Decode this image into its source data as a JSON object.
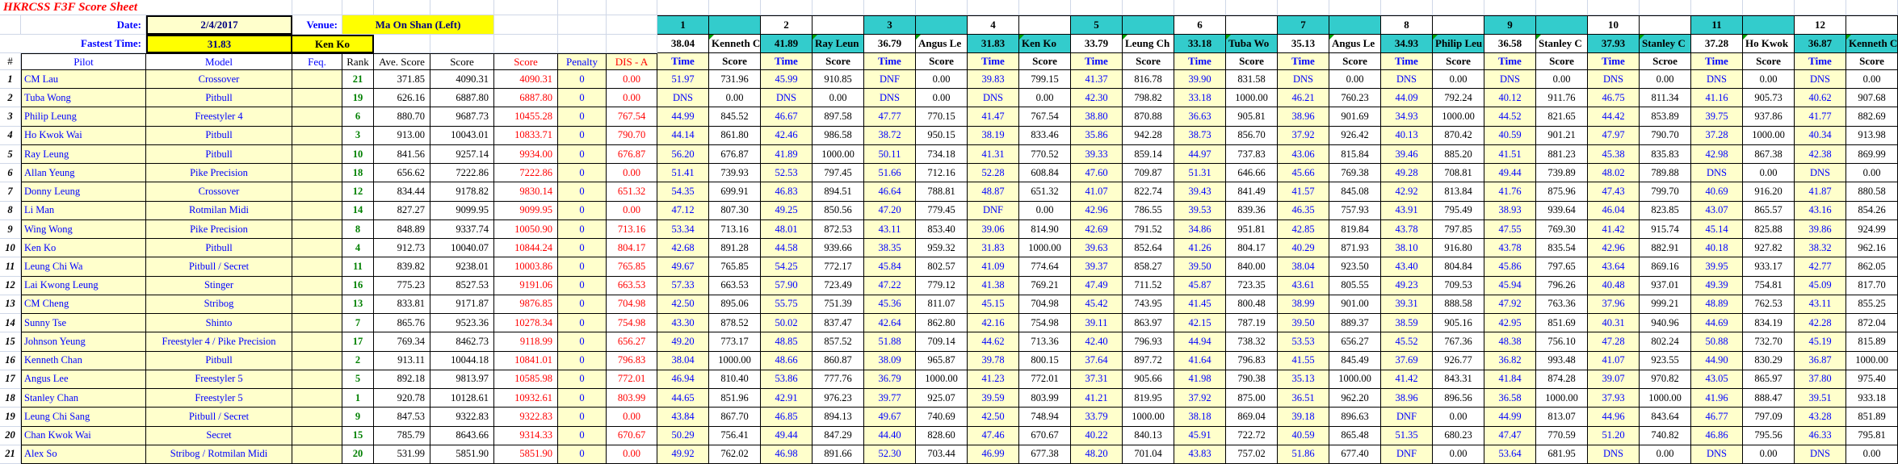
{
  "header": {
    "title": "HKRCSS F3F Score Sheet",
    "date_label": "Date:",
    "date": "2/4/2017",
    "venue_label": "Venue:",
    "venue": "Ma On Shan (Left)",
    "fastest_label": "Fastest Time:",
    "fastest_time": "31.83",
    "fastest_pilot": "Ken Ko"
  },
  "columns": {
    "num": "#",
    "pilot": "Pilot",
    "model": "Model",
    "feq": "Feq.",
    "rank": "Rank",
    "ave": "Ave. Score",
    "score": "Score",
    "score2": "Score",
    "penalty": "Penalty",
    "dis": "DIS - A",
    "time": "Time"
  },
  "colors": {
    "teal": "#33cccc",
    "pale_yellow": "#ffffcc",
    "bright_yellow": "#ffff00",
    "blue": "#0000ff",
    "red": "#ff0000",
    "green": "#008000",
    "navy": "#000080"
  },
  "rounds": [
    {
      "no": "1",
      "fastest": "38.04",
      "pilot": "Kenneth C",
      "score_label": "Score"
    },
    {
      "no": "2",
      "fastest": "41.89",
      "pilot": "Ray Leun",
      "score_label": "Score"
    },
    {
      "no": "3",
      "fastest": "36.79",
      "pilot": "Angus Le",
      "score_label": "Score"
    },
    {
      "no": "4",
      "fastest": "31.83",
      "pilot": "Ken Ko",
      "score_label": "Score"
    },
    {
      "no": "5",
      "fastest": "33.79",
      "pilot": "Leung Ch",
      "score_label": "Score"
    },
    {
      "no": "6",
      "fastest": "33.18",
      "pilot": "Tuba Wo",
      "score_label": "Score"
    },
    {
      "no": "7",
      "fastest": "35.13",
      "pilot": "Angus Le",
      "score_label": "Score"
    },
    {
      "no": "8",
      "fastest": "34.93",
      "pilot": "Philip Leu",
      "score_label": "Score"
    },
    {
      "no": "9",
      "fastest": "36.58",
      "pilot": "Stanley C",
      "score_label": "Score"
    },
    {
      "no": "10",
      "fastest": "37.93",
      "pilot": "Stanley C",
      "score_label": "Scroe"
    },
    {
      "no": "11",
      "fastest": "37.28",
      "pilot": "Ho Kwok",
      "score_label": "Score"
    },
    {
      "no": "12",
      "fastest": "36.87",
      "pilot": "Kenneth C",
      "score_label": "Score"
    }
  ],
  "rows": [
    {
      "no": "1",
      "pilot": "CM Lau",
      "model": "Crossover",
      "feq": "",
      "rank": "21",
      "ave": "371.85",
      "score": "4090.31",
      "score2": "4090.31",
      "pen": "0",
      "dis": "0.00",
      "r": [
        "51.97",
        "731.96",
        "45.99",
        "910.85",
        "DNF",
        "0.00",
        "39.83",
        "799.15",
        "41.37",
        "816.78",
        "39.90",
        "831.58",
        "DNS",
        "0.00",
        "DNS",
        "0.00",
        "DNS",
        "0.00",
        "DNS",
        "0.00",
        "DNS",
        "0.00",
        "DNS",
        "0.00"
      ]
    },
    {
      "no": "2",
      "pilot": "Tuba Wong",
      "model": "Pitbull",
      "feq": "",
      "rank": "19",
      "ave": "626.16",
      "score": "6887.80",
      "score2": "6887.80",
      "pen": "0",
      "dis": "0.00",
      "r": [
        "DNS",
        "0.00",
        "DNS",
        "0.00",
        "DNS",
        "0.00",
        "DNS",
        "0.00",
        "42.30",
        "798.82",
        "33.18",
        "1000.00",
        "46.21",
        "760.23",
        "44.09",
        "792.24",
        "40.12",
        "911.76",
        "46.75",
        "811.34",
        "41.16",
        "905.73",
        "40.62",
        "907.68"
      ]
    },
    {
      "no": "3",
      "pilot": "Philip Leung",
      "model": "Freestyler 4",
      "feq": "",
      "rank": "6",
      "ave": "880.70",
      "score": "9687.73",
      "score2": "10455.28",
      "pen": "0",
      "dis": "767.54",
      "r": [
        "44.99",
        "845.52",
        "46.67",
        "897.58",
        "47.77",
        "770.15",
        "41.47",
        "767.54",
        "38.80",
        "870.88",
        "36.63",
        "905.81",
        "38.96",
        "901.69",
        "34.93",
        "1000.00",
        "44.52",
        "821.65",
        "44.42",
        "853.89",
        "39.75",
        "937.86",
        "41.77",
        "882.69"
      ]
    },
    {
      "no": "4",
      "pilot": "Ho Kwok Wai",
      "model": "Pitbull",
      "feq": "",
      "rank": "3",
      "ave": "913.00",
      "score": "10043.01",
      "score2": "10833.71",
      "pen": "0",
      "dis": "790.70",
      "r": [
        "44.14",
        "861.80",
        "42.46",
        "986.58",
        "38.72",
        "950.15",
        "38.19",
        "833.46",
        "35.86",
        "942.28",
        "38.73",
        "856.70",
        "37.92",
        "926.42",
        "40.13",
        "870.42",
        "40.59",
        "901.21",
        "47.97",
        "790.70",
        "37.28",
        "1000.00",
        "40.34",
        "913.98"
      ]
    },
    {
      "no": "5",
      "pilot": "Ray Leung",
      "model": "Pitbull",
      "feq": "",
      "rank": "10",
      "ave": "841.56",
      "score": "9257.14",
      "score2": "9934.00",
      "pen": "0",
      "dis": "676.87",
      "r": [
        "56.20",
        "676.87",
        "41.89",
        "1000.00",
        "50.11",
        "734.18",
        "41.31",
        "770.52",
        "39.33",
        "859.14",
        "44.97",
        "737.83",
        "43.06",
        "815.84",
        "39.46",
        "885.20",
        "41.51",
        "881.23",
        "45.38",
        "835.83",
        "42.98",
        "867.38",
        "42.38",
        "869.99"
      ]
    },
    {
      "no": "6",
      "pilot": "Allan Yeung",
      "model": "Pike Precision",
      "feq": "",
      "rank": "18",
      "ave": "656.62",
      "score": "7222.86",
      "score2": "7222.86",
      "pen": "0",
      "dis": "0.00",
      "r": [
        "51.41",
        "739.93",
        "52.53",
        "797.45",
        "51.66",
        "712.16",
        "52.28",
        "608.84",
        "47.60",
        "709.87",
        "51.31",
        "646.66",
        "45.66",
        "769.38",
        "49.28",
        "708.81",
        "49.44",
        "739.89",
        "48.02",
        "789.88",
        "DNS",
        "0.00",
        "DNS",
        "0.00"
      ]
    },
    {
      "no": "7",
      "pilot": "Donny Leung",
      "model": "Crossover",
      "feq": "",
      "rank": "12",
      "ave": "834.44",
      "score": "9178.82",
      "score2": "9830.14",
      "pen": "0",
      "dis": "651.32",
      "r": [
        "54.35",
        "699.91",
        "46.83",
        "894.51",
        "46.64",
        "788.81",
        "48.87",
        "651.32",
        "41.07",
        "822.74",
        "39.43",
        "841.49",
        "41.57",
        "845.08",
        "42.92",
        "813.84",
        "41.76",
        "875.96",
        "47.43",
        "799.70",
        "40.69",
        "916.20",
        "41.87",
        "880.58"
      ]
    },
    {
      "no": "8",
      "pilot": "Li Man",
      "model": "Rotmilan Midi",
      "feq": "",
      "rank": "14",
      "ave": "827.27",
      "score": "9099.95",
      "score2": "9099.95",
      "pen": "0",
      "dis": "0.00",
      "r": [
        "47.12",
        "807.30",
        "49.25",
        "850.56",
        "47.20",
        "779.45",
        "DNF",
        "0.00",
        "42.96",
        "786.55",
        "39.53",
        "839.36",
        "46.35",
        "757.93",
        "43.91",
        "795.49",
        "38.93",
        "939.64",
        "46.04",
        "823.85",
        "43.07",
        "865.57",
        "43.16",
        "854.26"
      ]
    },
    {
      "no": "9",
      "pilot": "Wing Wong",
      "model": "Pike Precision",
      "feq": "",
      "rank": "8",
      "ave": "848.89",
      "score": "9337.74",
      "score2": "10050.90",
      "pen": "0",
      "dis": "713.16",
      "r": [
        "53.34",
        "713.16",
        "48.01",
        "872.53",
        "43.11",
        "853.40",
        "39.06",
        "814.90",
        "42.69",
        "791.52",
        "34.86",
        "951.81",
        "42.85",
        "819.84",
        "43.78",
        "797.85",
        "47.55",
        "769.30",
        "41.42",
        "915.74",
        "45.14",
        "825.88",
        "39.86",
        "924.99"
      ]
    },
    {
      "no": "10",
      "pilot": "Ken Ko",
      "model": "Pitbull",
      "feq": "",
      "rank": "4",
      "ave": "912.73",
      "score": "10040.07",
      "score2": "10844.24",
      "pen": "0",
      "dis": "804.17",
      "r": [
        "42.68",
        "891.28",
        "44.58",
        "939.66",
        "38.35",
        "959.32",
        "31.83",
        "1000.00",
        "39.63",
        "852.64",
        "41.26",
        "804.17",
        "40.29",
        "871.93",
        "38.10",
        "916.80",
        "43.78",
        "835.54",
        "42.96",
        "882.91",
        "40.18",
        "927.82",
        "38.32",
        "962.16"
      ]
    },
    {
      "no": "11",
      "pilot": "Leung Chi Wa",
      "model": "Pitbull / Secret",
      "feq": "",
      "rank": "11",
      "ave": "839.82",
      "score": "9238.01",
      "score2": "10003.86",
      "pen": "0",
      "dis": "765.85",
      "r": [
        "49.67",
        "765.85",
        "54.25",
        "772.17",
        "45.84",
        "802.57",
        "41.09",
        "774.64",
        "39.37",
        "858.27",
        "39.50",
        "840.00",
        "38.04",
        "923.50",
        "43.40",
        "804.84",
        "45.86",
        "797.65",
        "43.64",
        "869.16",
        "39.95",
        "933.17",
        "42.77",
        "862.05"
      ]
    },
    {
      "no": "12",
      "pilot": "Lai Kwong Leung",
      "model": "Stinger",
      "feq": "",
      "rank": "16",
      "ave": "775.23",
      "score": "8527.53",
      "score2": "9191.06",
      "pen": "0",
      "dis": "663.53",
      "r": [
        "57.33",
        "663.53",
        "57.90",
        "723.49",
        "47.22",
        "779.12",
        "41.38",
        "769.21",
        "47.49",
        "711.52",
        "45.87",
        "723.35",
        "43.61",
        "805.55",
        "49.23",
        "709.53",
        "45.94",
        "796.26",
        "40.48",
        "937.01",
        "49.39",
        "754.81",
        "45.09",
        "817.70"
      ]
    },
    {
      "no": "13",
      "pilot": "CM Cheng",
      "model": "Stribog",
      "feq": "",
      "rank": "13",
      "ave": "833.81",
      "score": "9171.87",
      "score2": "9876.85",
      "pen": "0",
      "dis": "704.98",
      "r": [
        "42.50",
        "895.06",
        "55.75",
        "751.39",
        "45.36",
        "811.07",
        "45.15",
        "704.98",
        "45.42",
        "743.95",
        "41.45",
        "800.48",
        "38.99",
        "901.00",
        "39.31",
        "888.58",
        "47.92",
        "763.36",
        "37.96",
        "999.21",
        "48.89",
        "762.53",
        "43.11",
        "855.25"
      ]
    },
    {
      "no": "14",
      "pilot": "Sunny Tse",
      "model": "Shinto",
      "feq": "",
      "rank": "7",
      "ave": "865.76",
      "score": "9523.36",
      "score2": "10278.34",
      "pen": "0",
      "dis": "754.98",
      "r": [
        "43.30",
        "878.52",
        "50.02",
        "837.47",
        "42.64",
        "862.80",
        "42.16",
        "754.98",
        "39.11",
        "863.97",
        "42.15",
        "787.19",
        "39.50",
        "889.37",
        "38.59",
        "905.16",
        "42.95",
        "851.69",
        "40.31",
        "940.96",
        "44.69",
        "834.19",
        "42.28",
        "872.04"
      ]
    },
    {
      "no": "15",
      "pilot": "Johnson Yeung",
      "model": "Freestyler 4 / Pike Precision",
      "feq": "",
      "rank": "17",
      "ave": "769.34",
      "score": "8462.73",
      "score2": "9118.99",
      "pen": "0",
      "dis": "656.27",
      "r": [
        "49.20",
        "773.17",
        "48.85",
        "857.52",
        "51.88",
        "709.14",
        "44.62",
        "713.36",
        "42.40",
        "796.93",
        "44.94",
        "738.32",
        "53.53",
        "656.27",
        "45.52",
        "767.36",
        "48.38",
        "756.10",
        "47.28",
        "802.24",
        "50.88",
        "732.70",
        "45.19",
        "815.89"
      ]
    },
    {
      "no": "16",
      "pilot": "Kenneth Chan",
      "model": "Pitbull",
      "feq": "",
      "rank": "2",
      "ave": "913.11",
      "score": "10044.18",
      "score2": "10841.01",
      "pen": "0",
      "dis": "796.83",
      "r": [
        "38.04",
        "1000.00",
        "48.66",
        "860.87",
        "38.09",
        "965.87",
        "39.78",
        "800.15",
        "37.64",
        "897.72",
        "41.64",
        "796.83",
        "41.55",
        "845.49",
        "37.69",
        "926.77",
        "36.82",
        "993.48",
        "41.07",
        "923.55",
        "44.90",
        "830.29",
        "36.87",
        "1000.00"
      ]
    },
    {
      "no": "17",
      "pilot": "Angus Lee",
      "model": "Freestyler 5",
      "feq": "",
      "rank": "5",
      "ave": "892.18",
      "score": "9813.97",
      "score2": "10585.98",
      "pen": "0",
      "dis": "772.01",
      "r": [
        "46.94",
        "810.40",
        "53.86",
        "777.76",
        "36.79",
        "1000.00",
        "41.23",
        "772.01",
        "37.31",
        "905.66",
        "41.98",
        "790.38",
        "35.13",
        "1000.00",
        "41.42",
        "843.31",
        "41.84",
        "874.28",
        "39.07",
        "970.82",
        "43.05",
        "865.97",
        "37.80",
        "975.40"
      ]
    },
    {
      "no": "18",
      "pilot": "Stanley Chan",
      "model": "Freestyler 5",
      "feq": "",
      "rank": "1",
      "ave": "920.78",
      "score": "10128.61",
      "score2": "10932.61",
      "pen": "0",
      "dis": "803.99",
      "r": [
        "44.65",
        "851.96",
        "42.91",
        "976.23",
        "39.77",
        "925.07",
        "39.59",
        "803.99",
        "41.21",
        "819.95",
        "37.92",
        "875.00",
        "36.51",
        "962.20",
        "38.96",
        "896.56",
        "36.58",
        "1000.00",
        "37.93",
        "1000.00",
        "41.96",
        "888.47",
        "39.51",
        "933.18"
      ]
    },
    {
      "no": "19",
      "pilot": "Leung Chi Sang",
      "model": "Pitbull / Secret",
      "feq": "",
      "rank": "9",
      "ave": "847.53",
      "score": "9322.83",
      "score2": "9322.83",
      "pen": "0",
      "dis": "0.00",
      "r": [
        "43.84",
        "867.70",
        "46.85",
        "894.13",
        "49.67",
        "740.69",
        "42.50",
        "748.94",
        "33.79",
        "1000.00",
        "38.18",
        "869.04",
        "39.18",
        "896.63",
        "DNF",
        "0.00",
        "44.99",
        "813.07",
        "44.96",
        "843.64",
        "46.77",
        "797.09",
        "43.28",
        "851.89"
      ]
    },
    {
      "no": "20",
      "pilot": "Chan Kwok Wai",
      "model": "Secret",
      "feq": "",
      "rank": "15",
      "ave": "785.79",
      "score": "8643.66",
      "score2": "9314.33",
      "pen": "0",
      "dis": "670.67",
      "r": [
        "50.29",
        "756.41",
        "49.44",
        "847.29",
        "44.40",
        "828.60",
        "47.46",
        "670.67",
        "40.22",
        "840.13",
        "45.91",
        "722.72",
        "40.59",
        "865.48",
        "51.35",
        "680.23",
        "47.47",
        "770.59",
        "51.20",
        "740.82",
        "46.86",
        "795.56",
        "46.33",
        "795.81"
      ]
    },
    {
      "no": "21",
      "pilot": "Alex So",
      "model": "Stribog / Rotmilan Midi",
      "feq": "",
      "rank": "20",
      "ave": "531.99",
      "score": "5851.90",
      "score2": "5851.90",
      "pen": "0",
      "dis": "0.00",
      "r": [
        "49.92",
        "762.02",
        "46.98",
        "891.66",
        "52.30",
        "703.44",
        "46.99",
        "677.38",
        "48.20",
        "701.04",
        "43.83",
        "757.02",
        "51.86",
        "677.40",
        "DNF",
        "0.00",
        "53.64",
        "681.95",
        "DNS",
        "0.00",
        "DNS",
        "0.00",
        "DNS",
        "0.00"
      ]
    }
  ]
}
